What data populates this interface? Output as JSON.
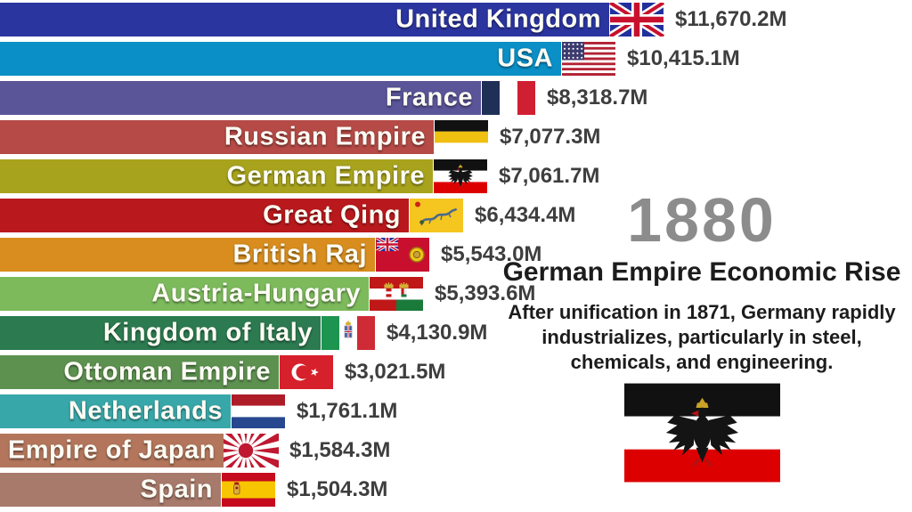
{
  "chart_data": {
    "type": "bar",
    "orientation": "horizontal",
    "sort": "descending",
    "title": "German Empire Economic Rise",
    "year": "1880",
    "value_prefix": "$",
    "value_suffix": "M",
    "bars": [
      {
        "label": "United Kingdom",
        "value": 11670.2,
        "value_label": "$11,670.2M",
        "color": "#2b35a0",
        "flag": "flag-united-kingdom"
      },
      {
        "label": "USA",
        "value": 10415.1,
        "value_label": "$10,415.1M",
        "color": "#0a8fc7",
        "flag": "flag-usa"
      },
      {
        "label": "France",
        "value": 8318.7,
        "value_label": "$8,318.7M",
        "color": "#5a5498",
        "flag": "flag-france"
      },
      {
        "label": "Russian Empire",
        "value": 7077.3,
        "value_label": "$7,077.3M",
        "color": "#b54a46",
        "flag": "flag-russian-empire"
      },
      {
        "label": "German Empire",
        "value": 7061.7,
        "value_label": "$7,061.7M",
        "color": "#a8a31c",
        "flag": "flag-german-empire"
      },
      {
        "label": "Great Qing",
        "value": 6434.4,
        "value_label": "$6,434.4M",
        "color": "#b9191d",
        "flag": "flag-great-qing"
      },
      {
        "label": "British Raj",
        "value": 5543.0,
        "value_label": "$5,543.0M",
        "color": "#d88d1e",
        "flag": "flag-british-raj"
      },
      {
        "label": "Austria-Hungary",
        "value": 5393.6,
        "value_label": "$5,393.6M",
        "color": "#7cba5c",
        "flag": "flag-austria-hungary"
      },
      {
        "label": "Kingdom of Italy",
        "value": 4130.9,
        "value_label": "$4,130.9M",
        "color": "#2c7a50",
        "flag": "flag-kingdom-of-italy"
      },
      {
        "label": "Ottoman Empire",
        "value": 3021.5,
        "value_label": "$3,021.5M",
        "color": "#5d9150",
        "flag": "flag-ottoman-empire"
      },
      {
        "label": "Netherlands",
        "value": 1761.1,
        "value_label": "$1,761.1M",
        "color": "#38a7a9",
        "flag": "flag-netherlands"
      },
      {
        "label": "Empire of Japan",
        "value": 1584.3,
        "value_label": "$1,584.3M",
        "color": "#b3765c",
        "flag": "flag-empire-of-japan"
      },
      {
        "label": "Spain",
        "value": 1504.3,
        "value_label": "$1,504.3M",
        "color": "#a87a6b",
        "flag": "flag-spain"
      }
    ]
  },
  "side_panel": {
    "year": "1880",
    "heading": "German Empire Economic Rise",
    "description": "After unification in 1871, Germany rapidly industrializes, particularly in steel, chemicals, and engineering.",
    "flag": "flag-german-empire",
    "year_color": "#8c8c8c",
    "text_color": "#1c1c1c"
  }
}
